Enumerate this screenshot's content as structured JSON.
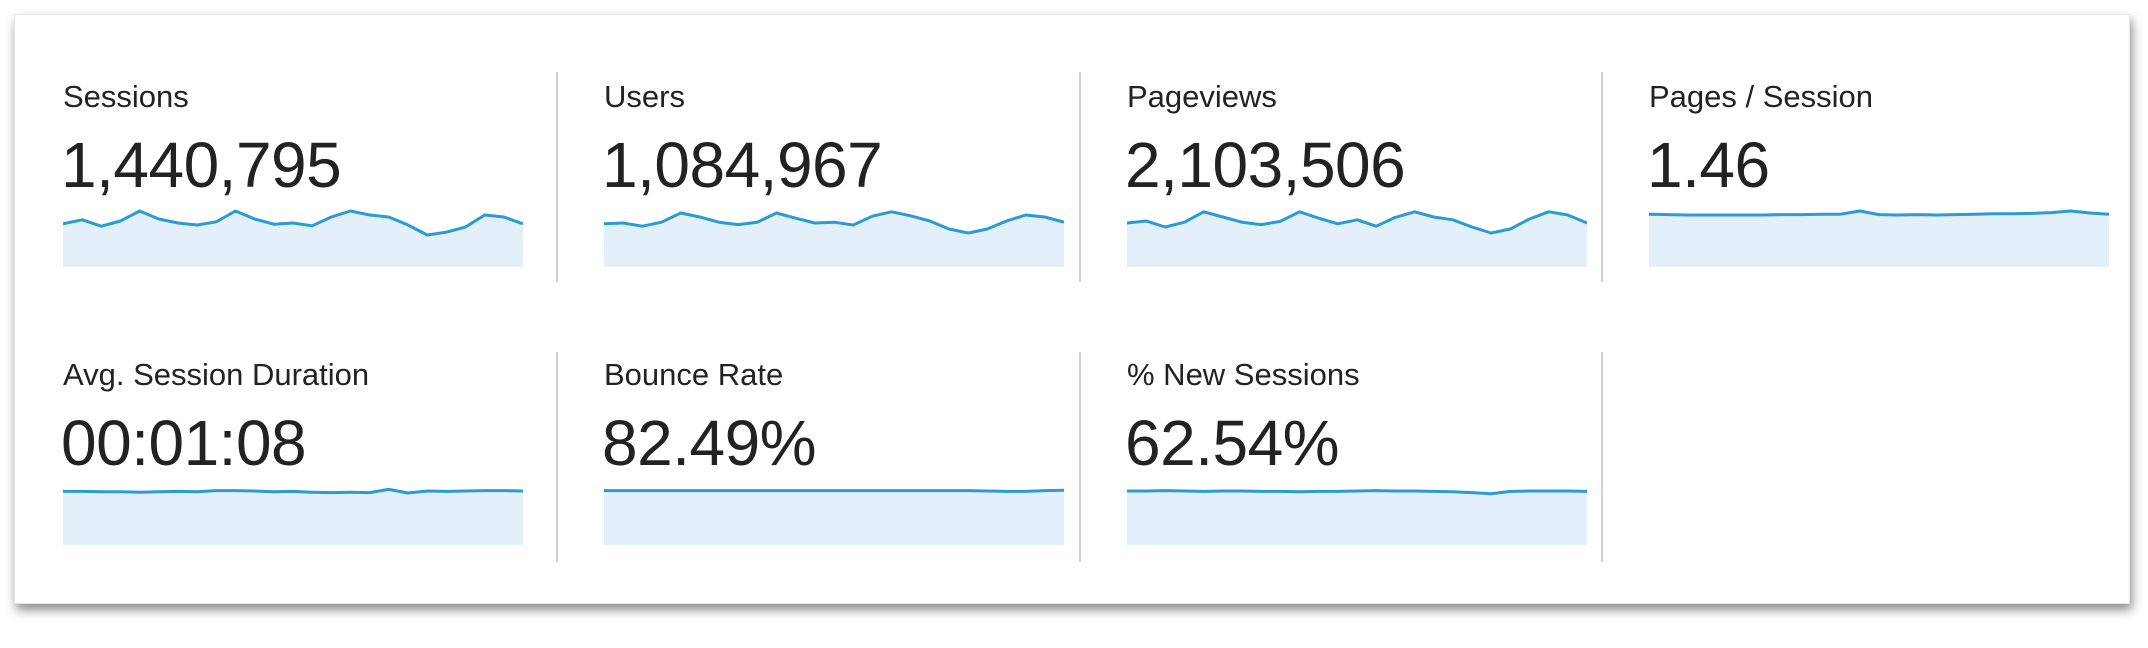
{
  "accent_color": "#2b9bd6",
  "fill_color": "#e3f0fa",
  "metrics": [
    {
      "label": "Sessions",
      "value": "1,440,795",
      "sparkline": [
        108,
        118,
        102,
        115,
        140,
        120,
        110,
        105,
        113,
        140,
        120,
        107,
        110,
        103,
        125,
        140,
        130,
        125,
        105,
        80,
        87,
        100,
        130,
        125,
        108
      ]
    },
    {
      "label": "Users",
      "value": "1,084,967",
      "sparkline": [
        108,
        110,
        102,
        112,
        135,
        125,
        112,
        106,
        112,
        135,
        122,
        110,
        112,
        105,
        127,
        138,
        128,
        115,
        95,
        85,
        95,
        115,
        130,
        125,
        112
      ]
    },
    {
      "label": "Pageviews",
      "value": "2,103,506",
      "sparkline": [
        110,
        115,
        100,
        112,
        138,
        125,
        112,
        106,
        114,
        138,
        122,
        108,
        118,
        102,
        124,
        138,
        125,
        118,
        100,
        85,
        95,
        120,
        138,
        130,
        110
      ]
    },
    {
      "label": "Pages / Session",
      "value": "1.46",
      "sparkline": [
        132,
        131,
        130,
        130,
        130,
        130,
        130,
        131,
        131,
        132,
        132,
        140,
        131,
        130,
        131,
        130,
        131,
        132,
        133,
        133,
        134,
        136,
        140,
        135,
        132
      ]
    },
    {
      "label": "Avg. Session Duration",
      "value": "00:01:08",
      "sparkline": [
        134,
        134,
        133,
        133,
        132,
        133,
        134,
        133,
        136,
        136,
        135,
        133,
        134,
        132,
        131,
        132,
        131,
        139,
        130,
        135,
        134,
        135,
        136,
        136,
        135
      ]
    },
    {
      "label": "Bounce Rate",
      "value": "82.49%",
      "sparkline": [
        136,
        136,
        136,
        136,
        136,
        136,
        136,
        136,
        136,
        136,
        136,
        136,
        136,
        136,
        136,
        136,
        136,
        136,
        136,
        136,
        135,
        134,
        134,
        136,
        137
      ]
    },
    {
      "label": "% New Sessions",
      "value": "62.54%",
      "sparkline": [
        135,
        135,
        136,
        135,
        134,
        135,
        135,
        134,
        134,
        133,
        134,
        134,
        135,
        136,
        135,
        135,
        134,
        133,
        131,
        128,
        134,
        135,
        135,
        135,
        134
      ]
    }
  ]
}
